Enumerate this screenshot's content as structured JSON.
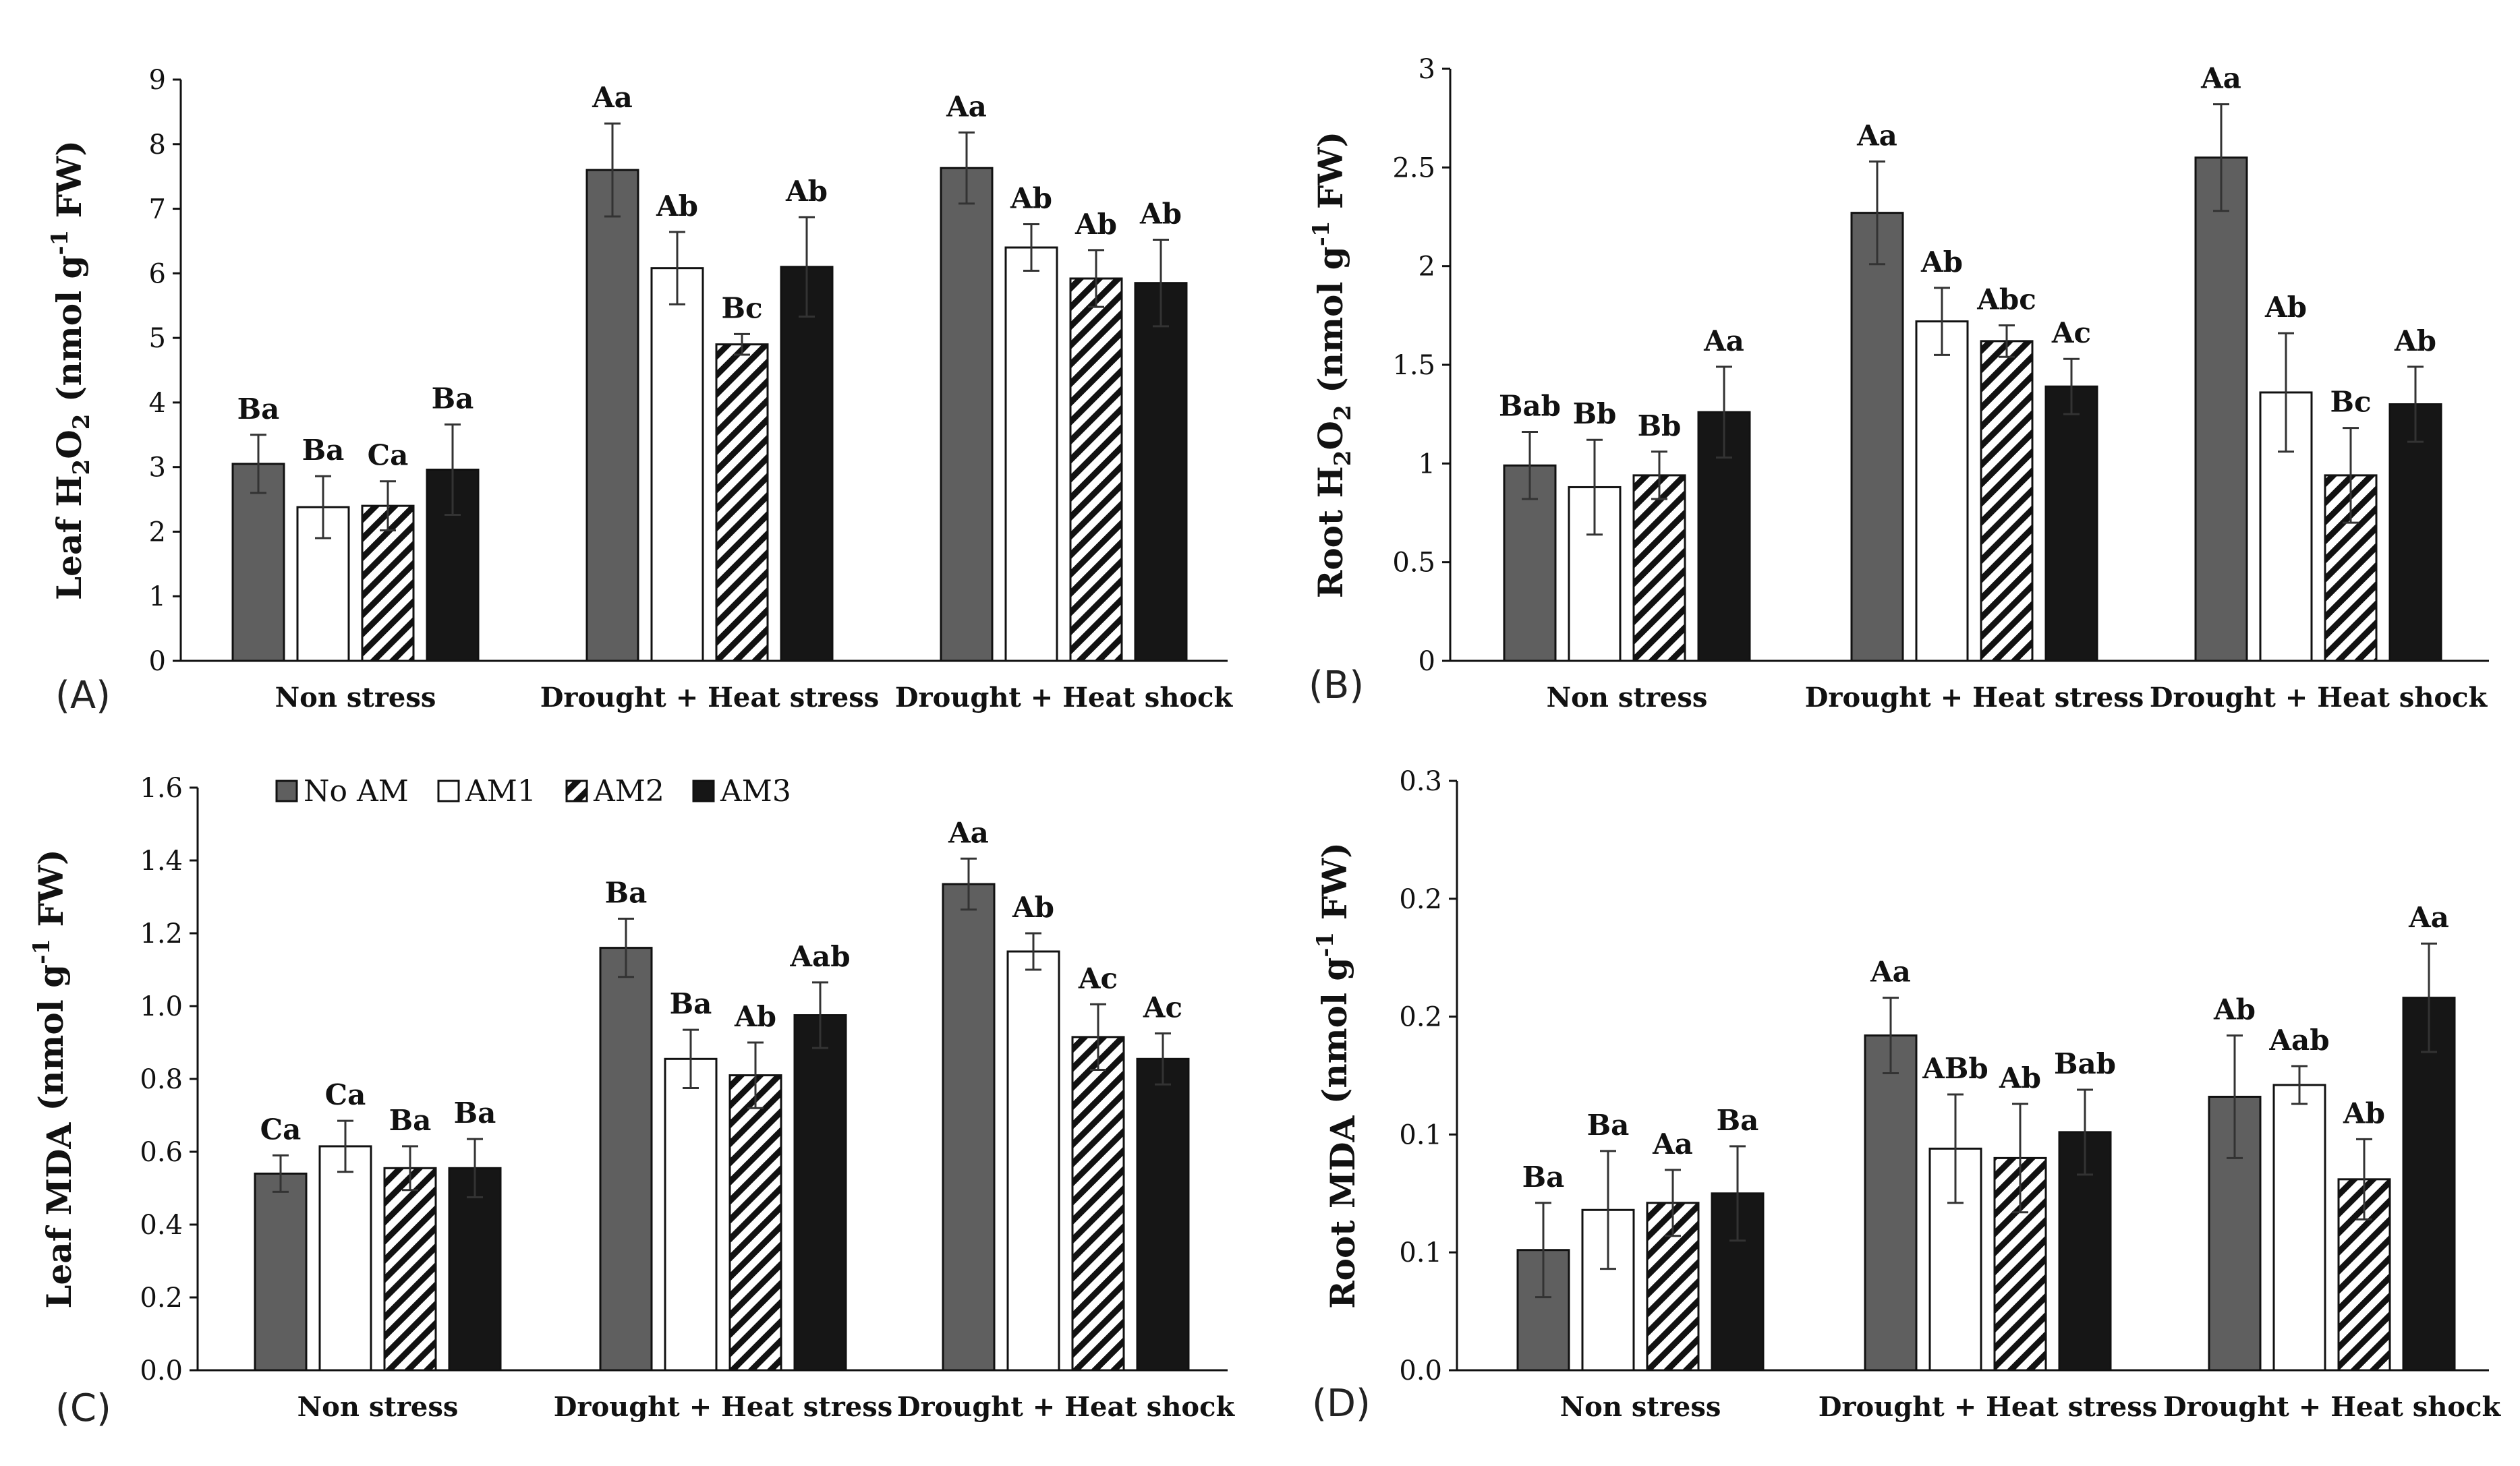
{
  "figure": {
    "legend": {
      "entries": [
        "No AM",
        "AM1",
        "AM2",
        "AM3"
      ]
    }
  },
  "chart_data": [
    {
      "panel": "(A)",
      "type": "bar",
      "ylabel": {
        "main": "Leaf H",
        "sub1": "2",
        "mid": "O",
        "sub2": "2",
        "unit_pre": " (nmol g",
        "sup": "-1",
        "unit_post": " FW)"
      },
      "ylim": [
        0,
        9
      ],
      "yticks": [
        "0",
        "1",
        "2",
        "3",
        "4",
        "5",
        "6",
        "7",
        "8",
        "9"
      ],
      "categories": [
        "Non stress",
        "Drought + Heat stress",
        "Drought + Heat shock"
      ],
      "series": [
        {
          "name": "No AM",
          "values": [
            3.05,
            7.6,
            7.63
          ],
          "errors": [
            0.45,
            0.72,
            0.55
          ],
          "labels": [
            "Ba",
            "Aa",
            "Aa"
          ]
        },
        {
          "name": "AM1",
          "values": [
            2.38,
            6.08,
            6.4
          ],
          "errors": [
            0.48,
            0.56,
            0.36
          ],
          "labels": [
            "Ba",
            "Ab",
            "Ab"
          ]
        },
        {
          "name": "AM2",
          "values": [
            2.4,
            4.9,
            5.92
          ],
          "errors": [
            0.38,
            0.16,
            0.44
          ],
          "labels": [
            "Ca",
            "Bc",
            "Ab"
          ]
        },
        {
          "name": "AM3",
          "values": [
            2.96,
            6.1,
            5.85
          ],
          "errors": [
            0.7,
            0.77,
            0.67
          ],
          "labels": [
            "Ba",
            "Ab",
            "Ab"
          ]
        }
      ]
    },
    {
      "panel": "(B)",
      "type": "bar",
      "ylabel": {
        "main": "Root H",
        "sub1": "2",
        "mid": "O",
        "sub2": "2",
        "unit_pre": " (nmol g",
        "sup": "-1",
        "unit_post": " FW)"
      },
      "ylim": [
        0,
        3
      ],
      "yticks": [
        "0",
        "0.5",
        "1",
        "1.5",
        "2",
        "2.5",
        "3"
      ],
      "categories": [
        "Non stress",
        "Drought + Heat stress",
        "Drought + Heat shock"
      ],
      "series": [
        {
          "name": "No AM",
          "values": [
            0.99,
            2.27,
            2.55
          ],
          "errors": [
            0.17,
            0.26,
            0.27
          ],
          "labels": [
            "Bab",
            "Aa",
            "Aa"
          ]
        },
        {
          "name": "AM1",
          "values": [
            0.88,
            1.72,
            1.36
          ],
          "errors": [
            0.24,
            0.17,
            0.3
          ],
          "labels": [
            "Bb",
            "Ab",
            "Ab"
          ]
        },
        {
          "name": "AM2",
          "values": [
            0.94,
            1.62,
            0.94
          ],
          "errors": [
            0.12,
            0.08,
            0.24
          ],
          "labels": [
            "Bb",
            "Abc",
            "Bc"
          ]
        },
        {
          "name": "AM3",
          "values": [
            1.26,
            1.39,
            1.3
          ],
          "errors": [
            0.23,
            0.14,
            0.19
          ],
          "labels": [
            "Aa",
            "Ac",
            "Ab"
          ]
        }
      ]
    },
    {
      "panel": "(C)",
      "type": "bar",
      "ylabel": {
        "main": "Leaf MDA",
        "sub1": "",
        "mid": "",
        "sub2": "",
        "unit_pre": " (nmol g",
        "sup": "-1",
        "unit_post": " FW)"
      },
      "ylim": [
        0,
        1.6
      ],
      "yticks": [
        "0.0",
        "0.2",
        "0.4",
        "0.6",
        "0.8",
        "1.0",
        "1.2",
        "1.4",
        "1.6"
      ],
      "categories": [
        "Non stress",
        "Drought + Heat stress",
        "Drought + Heat shock"
      ],
      "series": [
        {
          "name": "No AM",
          "values": [
            0.54,
            1.16,
            1.335
          ],
          "errors": [
            0.05,
            0.08,
            0.07
          ],
          "labels": [
            "Ca",
            "Ba",
            "Aa"
          ]
        },
        {
          "name": "AM1",
          "values": [
            0.615,
            0.855,
            1.15
          ],
          "errors": [
            0.07,
            0.08,
            0.05
          ],
          "labels": [
            "Ca",
            "Ba",
            "Ab"
          ]
        },
        {
          "name": "AM2",
          "values": [
            0.555,
            0.81,
            0.915
          ],
          "errors": [
            0.06,
            0.09,
            0.09
          ],
          "labels": [
            "Ba",
            "Ab",
            "Ac"
          ]
        },
        {
          "name": "AM3",
          "values": [
            0.555,
            0.975,
            0.855
          ],
          "errors": [
            0.08,
            0.09,
            0.07
          ],
          "labels": [
            "Ba",
            "Aab",
            "Ac"
          ]
        }
      ]
    },
    {
      "panel": "(D)",
      "type": "bar",
      "ylabel": {
        "main": "Root MDA",
        "sub1": "",
        "mid": "",
        "sub2": "",
        "unit_pre": " (nmol g",
        "sup": "-1",
        "unit_post": " FW)"
      },
      "ylim": [
        0,
        0.25
      ],
      "ytick_values": [
        0,
        0.05,
        0.1,
        0.15,
        0.2,
        0.25
      ],
      "yticks": [
        "0.0",
        "0.1",
        "0.1",
        "0.2",
        "0.2",
        "0.3"
      ],
      "categories": [
        "Non stress",
        "Drought + Heat stress",
        "Drought + Heat shock"
      ],
      "series": [
        {
          "name": "No AM",
          "values": [
            0.051,
            0.142,
            0.116
          ],
          "errors": [
            0.02,
            0.016,
            0.026
          ],
          "labels": [
            "Ba",
            "Aa",
            "Ab"
          ]
        },
        {
          "name": "AM1",
          "values": [
            0.068,
            0.094,
            0.121
          ],
          "errors": [
            0.025,
            0.023,
            0.008
          ],
          "labels": [
            "Ba",
            "ABb",
            "Aab"
          ]
        },
        {
          "name": "AM2",
          "values": [
            0.071,
            0.09,
            0.081
          ],
          "errors": [
            0.014,
            0.023,
            0.017
          ],
          "labels": [
            "Aa",
            "Ab",
            "Ab"
          ]
        },
        {
          "name": "AM3",
          "values": [
            0.075,
            0.101,
            0.158
          ],
          "errors": [
            0.02,
            0.018,
            0.023
          ],
          "labels": [
            "Ba",
            "Bab",
            "Aa"
          ]
        }
      ]
    }
  ]
}
